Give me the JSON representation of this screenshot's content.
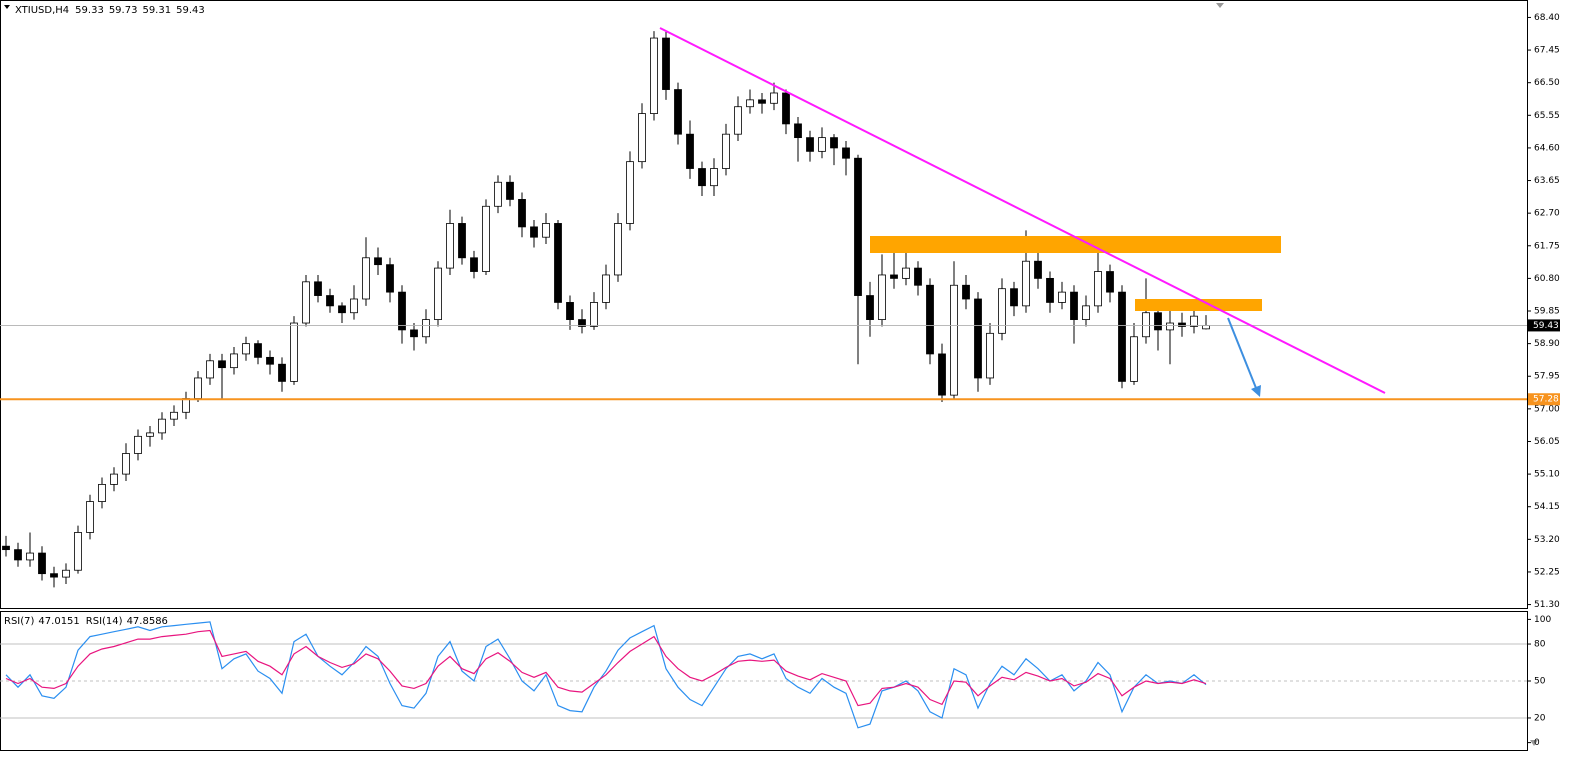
{
  "chart_data": [
    {
      "type": "candlestick",
      "title": "XTIUSD,H4",
      "ohlc": [
        [
          53.0,
          53.3,
          52.7,
          52.9
        ],
        [
          52.9,
          53.1,
          52.4,
          52.6
        ],
        [
          52.6,
          53.4,
          52.4,
          52.8
        ],
        [
          52.8,
          53.0,
          52.0,
          52.2
        ],
        [
          52.2,
          52.4,
          51.8,
          52.1
        ],
        [
          52.1,
          52.5,
          51.9,
          52.3
        ],
        [
          52.3,
          53.6,
          52.2,
          53.4
        ],
        [
          53.4,
          54.5,
          53.2,
          54.3
        ],
        [
          54.3,
          55.0,
          54.1,
          54.8
        ],
        [
          54.8,
          55.3,
          54.6,
          55.1
        ],
        [
          55.1,
          56.0,
          54.9,
          55.7
        ],
        [
          55.7,
          56.4,
          55.5,
          56.2
        ],
        [
          56.2,
          56.5,
          55.9,
          56.3
        ],
        [
          56.3,
          56.9,
          56.1,
          56.7
        ],
        [
          56.7,
          57.1,
          56.5,
          56.9
        ],
        [
          56.9,
          57.5,
          56.7,
          57.3
        ],
        [
          57.3,
          58.1,
          57.2,
          57.9
        ],
        [
          57.9,
          58.6,
          57.7,
          58.4
        ],
        [
          58.4,
          58.6,
          57.3,
          58.2
        ],
        [
          58.2,
          58.8,
          58.0,
          58.6
        ],
        [
          58.6,
          59.1,
          58.4,
          58.9
        ],
        [
          58.9,
          59.0,
          58.3,
          58.5
        ],
        [
          58.5,
          58.7,
          58.0,
          58.3
        ],
        [
          58.3,
          58.5,
          57.5,
          57.8
        ],
        [
          57.8,
          59.7,
          57.7,
          59.5
        ],
        [
          59.5,
          60.9,
          59.4,
          60.7
        ],
        [
          60.7,
          60.9,
          60.1,
          60.3
        ],
        [
          60.3,
          60.5,
          59.8,
          60.0
        ],
        [
          60.0,
          60.1,
          59.5,
          59.8
        ],
        [
          59.8,
          60.6,
          59.6,
          60.2
        ],
        [
          60.2,
          62.0,
          60.0,
          61.4
        ],
        [
          61.4,
          61.7,
          60.9,
          61.2
        ],
        [
          61.2,
          61.4,
          60.1,
          60.4
        ],
        [
          60.4,
          60.6,
          58.9,
          59.3
        ],
        [
          59.3,
          59.5,
          58.7,
          59.1
        ],
        [
          59.1,
          59.9,
          58.9,
          59.6
        ],
        [
          59.6,
          61.3,
          59.4,
          61.1
        ],
        [
          61.1,
          62.8,
          60.9,
          62.4
        ],
        [
          62.4,
          62.6,
          61.2,
          61.4
        ],
        [
          61.4,
          61.6,
          60.8,
          61.0
        ],
        [
          61.0,
          63.1,
          60.9,
          62.9
        ],
        [
          62.9,
          63.8,
          62.7,
          63.6
        ],
        [
          63.6,
          63.8,
          62.9,
          63.1
        ],
        [
          63.1,
          63.3,
          62.0,
          62.3
        ],
        [
          62.3,
          62.5,
          61.7,
          62.0
        ],
        [
          62.0,
          62.7,
          61.8,
          62.4
        ],
        [
          62.4,
          62.5,
          59.9,
          60.1
        ],
        [
          60.1,
          60.3,
          59.3,
          59.6
        ],
        [
          59.6,
          59.9,
          59.2,
          59.4
        ],
        [
          59.4,
          60.4,
          59.3,
          60.1
        ],
        [
          60.1,
          61.2,
          59.9,
          60.9
        ],
        [
          60.9,
          62.7,
          60.7,
          62.4
        ],
        [
          62.4,
          64.5,
          62.2,
          64.2
        ],
        [
          64.2,
          65.9,
          64.0,
          65.6
        ],
        [
          65.6,
          68.0,
          65.4,
          67.8
        ],
        [
          67.8,
          68.0,
          66.0,
          66.3
        ],
        [
          66.3,
          66.5,
          64.7,
          65.0
        ],
        [
          65.0,
          65.4,
          63.7,
          64.0
        ],
        [
          64.0,
          64.2,
          63.2,
          63.5
        ],
        [
          63.5,
          64.3,
          63.2,
          64.0
        ],
        [
          64.0,
          65.3,
          63.8,
          65.0
        ],
        [
          65.0,
          66.1,
          64.8,
          65.8
        ],
        [
          65.8,
          66.3,
          65.6,
          66.0
        ],
        [
          66.0,
          66.2,
          65.6,
          65.9
        ],
        [
          65.9,
          66.5,
          65.7,
          66.2
        ],
        [
          66.2,
          66.3,
          65.0,
          65.3
        ],
        [
          65.3,
          65.5,
          64.2,
          64.9
        ],
        [
          64.9,
          65.1,
          64.2,
          64.5
        ],
        [
          64.5,
          65.2,
          64.3,
          64.9
        ],
        [
          64.9,
          65.0,
          64.1,
          64.6
        ],
        [
          64.6,
          64.8,
          63.8,
          64.3
        ],
        [
          64.3,
          64.4,
          58.3,
          60.3
        ],
        [
          60.3,
          60.7,
          59.1,
          59.6
        ],
        [
          59.6,
          61.5,
          59.4,
          60.9
        ],
        [
          60.9,
          61.6,
          60.5,
          60.8
        ],
        [
          60.8,
          61.9,
          60.6,
          61.1
        ],
        [
          61.1,
          61.3,
          60.3,
          60.6
        ],
        [
          60.6,
          60.8,
          58.3,
          58.6
        ],
        [
          58.6,
          58.9,
          57.2,
          57.4
        ],
        [
          57.4,
          61.3,
          57.3,
          60.6
        ],
        [
          60.6,
          60.9,
          59.9,
          60.2
        ],
        [
          60.2,
          60.4,
          57.5,
          57.9
        ],
        [
          57.9,
          59.5,
          57.7,
          59.2
        ],
        [
          59.2,
          60.8,
          59.0,
          60.5
        ],
        [
          60.5,
          60.7,
          59.7,
          60.0
        ],
        [
          60.0,
          62.2,
          59.8,
          61.3
        ],
        [
          61.3,
          61.6,
          60.5,
          60.8
        ],
        [
          60.8,
          61.0,
          59.8,
          60.1
        ],
        [
          60.1,
          60.7,
          59.9,
          60.4
        ],
        [
          60.4,
          60.6,
          58.9,
          59.6
        ],
        [
          59.6,
          60.3,
          59.4,
          60.0
        ],
        [
          60.0,
          61.6,
          59.8,
          61.0
        ],
        [
          61.0,
          61.2,
          60.1,
          60.4
        ],
        [
          60.4,
          60.6,
          57.6,
          57.8
        ],
        [
          57.8,
          59.5,
          57.7,
          59.1
        ],
        [
          59.1,
          60.8,
          58.9,
          59.8
        ],
        [
          59.8,
          60.0,
          58.7,
          59.3
        ],
        [
          59.3,
          59.9,
          58.3,
          59.5
        ],
        [
          59.5,
          59.8,
          59.1,
          59.4
        ],
        [
          59.4,
          60.0,
          59.2,
          59.7
        ],
        [
          59.33,
          59.73,
          59.31,
          59.43
        ]
      ],
      "ylim": [
        51.2,
        68.85
      ],
      "yticks": [
        {
          "value": 68.4,
          "label": "68.40"
        },
        {
          "value": 67.45,
          "label": "67.45"
        },
        {
          "value": 66.5,
          "label": "66.50"
        },
        {
          "value": 65.55,
          "label": "65.55"
        },
        {
          "value": 64.6,
          "label": "64.60"
        },
        {
          "value": 63.65,
          "label": "63.65"
        },
        {
          "value": 62.7,
          "label": "62.70"
        },
        {
          "value": 61.75,
          "label": "61.75"
        },
        {
          "value": 60.8,
          "label": "60.80"
        },
        {
          "value": 59.85,
          "label": "59.85"
        },
        {
          "value": 58.9,
          "label": "58.90"
        },
        {
          "value": 57.95,
          "label": "57.95"
        },
        {
          "value": 57.0,
          "label": "57.00"
        },
        {
          "value": 56.05,
          "label": "56.05"
        },
        {
          "value": 55.1,
          "label": "55.10"
        },
        {
          "value": 54.15,
          "label": "54.15"
        },
        {
          "value": 53.2,
          "label": "53.20"
        },
        {
          "value": 52.25,
          "label": "52.25"
        },
        {
          "value": 51.3,
          "label": "51.30"
        }
      ],
      "hlines": [
        {
          "value": 57.28,
          "color": "#f7931e"
        }
      ],
      "up_color": "#ffffff",
      "down_color": "#000000",
      "grid": false
    },
    {
      "type": "line",
      "series": [
        {
          "name": "RSI(7)",
          "color": "#2b8ff0",
          "values": [
            55,
            45,
            55,
            38,
            36,
            45,
            75,
            86,
            88,
            90,
            92,
            94,
            91,
            94,
            95,
            96,
            97,
            98,
            60,
            68,
            72,
            58,
            52,
            40,
            82,
            88,
            70,
            62,
            55,
            65,
            78,
            70,
            48,
            30,
            28,
            40,
            70,
            82,
            58,
            50,
            78,
            84,
            68,
            50,
            42,
            55,
            30,
            26,
            25,
            45,
            58,
            75,
            85,
            90,
            95,
            60,
            45,
            35,
            30,
            45,
            60,
            70,
            72,
            68,
            72,
            52,
            45,
            40,
            52,
            45,
            40,
            12,
            15,
            42,
            45,
            50,
            42,
            25,
            20,
            60,
            55,
            28,
            48,
            62,
            55,
            68,
            60,
            50,
            55,
            42,
            50,
            65,
            55,
            25,
            45,
            55,
            48,
            50,
            48,
            55,
            47.0151
          ]
        },
        {
          "name": "RSI(14)",
          "color": "#e8157f",
          "values": [
            52,
            48,
            52,
            45,
            44,
            48,
            62,
            72,
            76,
            78,
            81,
            84,
            84,
            86,
            87,
            88,
            90,
            91,
            70,
            72,
            74,
            66,
            62,
            55,
            72,
            78,
            70,
            65,
            61,
            64,
            72,
            68,
            58,
            46,
            44,
            48,
            62,
            70,
            60,
            56,
            68,
            73,
            66,
            57,
            53,
            57,
            45,
            42,
            41,
            48,
            55,
            65,
            74,
            80,
            86,
            70,
            60,
            53,
            50,
            55,
            61,
            66,
            67,
            66,
            67,
            58,
            54,
            51,
            56,
            53,
            50,
            30,
            32,
            44,
            45,
            48,
            45,
            35,
            31,
            50,
            49,
            38,
            46,
            53,
            51,
            57,
            54,
            50,
            52,
            46,
            49,
            56,
            52,
            38,
            45,
            50,
            48,
            49,
            48,
            51,
            47.8586
          ]
        }
      ],
      "ylim": [
        -6,
        106
      ],
      "yticks": [
        100,
        80,
        50,
        20,
        0
      ],
      "levels": [
        80,
        50,
        20
      ],
      "level_styles": [
        "solid",
        "dashed",
        "solid"
      ]
    }
  ]
}
